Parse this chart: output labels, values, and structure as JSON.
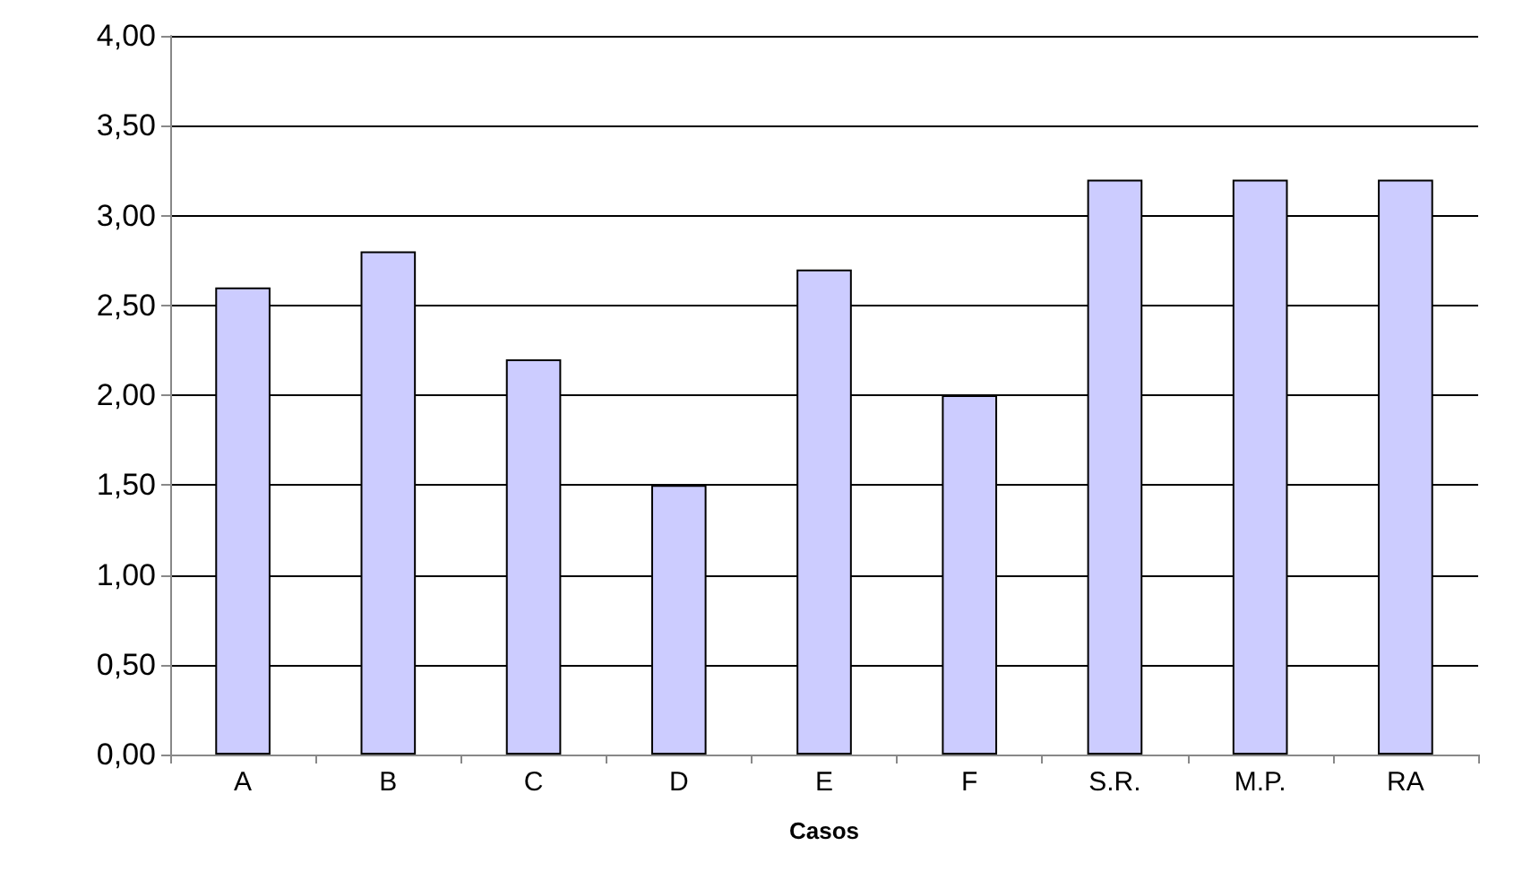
{
  "chart_data": {
    "type": "bar",
    "xlabel": "Casos",
    "categories": [
      "A",
      "B",
      "C",
      "D",
      "E",
      "F",
      "S.R.",
      "M.P.",
      "RA"
    ],
    "values": [
      2.6,
      2.8,
      2.2,
      1.5,
      2.7,
      2.0,
      3.2,
      3.2,
      3.2
    ],
    "color": "#ccccff",
    "ylim": [
      0,
      4
    ],
    "yticks": [
      {
        "value": 0,
        "label": "0,00"
      },
      {
        "value": 0.5,
        "label": "0,50"
      },
      {
        "value": 1,
        "label": "1,00"
      },
      {
        "value": 1.5,
        "label": "1,50"
      },
      {
        "value": 2,
        "label": "2,00"
      },
      {
        "value": 2.5,
        "label": "2,50"
      },
      {
        "value": 3,
        "label": "3,00"
      },
      {
        "value": 3.5,
        "label": "3,50"
      },
      {
        "value": 4,
        "label": "4,00"
      }
    ],
    "grid": "y"
  }
}
